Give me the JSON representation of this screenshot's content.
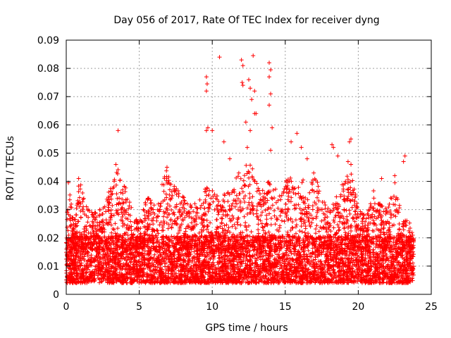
{
  "chart_data": {
    "type": "scatter",
    "title": "Day 056 of 2017, Rate Of TEC Index for receiver dyng",
    "xlabel": "GPS time / hours",
    "ylabel": "ROTI / TECUs",
    "xlim": [
      0,
      25
    ],
    "ylim": [
      0,
      0.09
    ],
    "x_ticks": [
      0,
      5,
      10,
      15,
      20,
      25
    ],
    "x_tick_labels": [
      "0",
      "5",
      "10",
      "15",
      "20",
      "25"
    ],
    "y_ticks": [
      0,
      0.01,
      0.02,
      0.03,
      0.04,
      0.05,
      0.06,
      0.07,
      0.08,
      0.09
    ],
    "y_tick_labels": [
      "0",
      "0.01",
      "0.02",
      "0.03",
      "0.04",
      "0.05",
      "0.06",
      "0.07",
      "0.08",
      "0.09"
    ],
    "grid": true,
    "marker": "+",
    "color": "#ff0000",
    "data_range_x": [
      0.0,
      23.8
    ],
    "baseline": {
      "typical_min": 0.004,
      "typical_max": 0.02,
      "median": 0.011
    },
    "envelope": [
      {
        "x": 0.0,
        "y": 0.03
      },
      {
        "x": 0.2,
        "y": 0.04
      },
      {
        "x": 0.5,
        "y": 0.025
      },
      {
        "x": 0.9,
        "y": 0.041
      },
      {
        "x": 1.5,
        "y": 0.03
      },
      {
        "x": 2.0,
        "y": 0.029
      },
      {
        "x": 2.5,
        "y": 0.031
      },
      {
        "x": 3.0,
        "y": 0.038
      },
      {
        "x": 3.6,
        "y": 0.045
      },
      {
        "x": 4.0,
        "y": 0.04
      },
      {
        "x": 4.5,
        "y": 0.03
      },
      {
        "x": 5.0,
        "y": 0.026
      },
      {
        "x": 5.6,
        "y": 0.036
      },
      {
        "x": 6.2,
        "y": 0.03
      },
      {
        "x": 6.8,
        "y": 0.045
      },
      {
        "x": 7.2,
        "y": 0.04
      },
      {
        "x": 7.6,
        "y": 0.037
      },
      {
        "x": 8.5,
        "y": 0.032
      },
      {
        "x": 9.0,
        "y": 0.034
      },
      {
        "x": 9.5,
        "y": 0.038
      },
      {
        "x": 10.0,
        "y": 0.037
      },
      {
        "x": 10.5,
        "y": 0.035
      },
      {
        "x": 11.0,
        "y": 0.036
      },
      {
        "x": 11.5,
        "y": 0.04
      },
      {
        "x": 12.0,
        "y": 0.045
      },
      {
        "x": 12.5,
        "y": 0.047
      },
      {
        "x": 13.0,
        "y": 0.042
      },
      {
        "x": 13.5,
        "y": 0.038
      },
      {
        "x": 14.0,
        "y": 0.045
      },
      {
        "x": 14.5,
        "y": 0.034
      },
      {
        "x": 15.0,
        "y": 0.041
      },
      {
        "x": 15.5,
        "y": 0.042
      },
      {
        "x": 16.0,
        "y": 0.044
      },
      {
        "x": 16.5,
        "y": 0.036
      },
      {
        "x": 17.0,
        "y": 0.044
      },
      {
        "x": 17.5,
        "y": 0.034
      },
      {
        "x": 18.0,
        "y": 0.03
      },
      {
        "x": 18.5,
        "y": 0.036
      },
      {
        "x": 19.0,
        "y": 0.04
      },
      {
        "x": 19.5,
        "y": 0.045
      },
      {
        "x": 20.0,
        "y": 0.03
      },
      {
        "x": 20.5,
        "y": 0.028
      },
      {
        "x": 21.0,
        "y": 0.038
      },
      {
        "x": 21.5,
        "y": 0.032
      },
      {
        "x": 22.0,
        "y": 0.03
      },
      {
        "x": 22.5,
        "y": 0.04
      },
      {
        "x": 23.0,
        "y": 0.027
      },
      {
        "x": 23.5,
        "y": 0.026
      },
      {
        "x": 23.8,
        "y": 0.02
      }
    ],
    "notable_points": [
      {
        "x": 0.15,
        "y": 0.0395
      },
      {
        "x": 0.85,
        "y": 0.041
      },
      {
        "x": 3.55,
        "y": 0.058
      },
      {
        "x": 3.4,
        "y": 0.046
      },
      {
        "x": 6.9,
        "y": 0.045
      },
      {
        "x": 9.6,
        "y": 0.077
      },
      {
        "x": 9.65,
        "y": 0.0745
      },
      {
        "x": 9.6,
        "y": 0.072
      },
      {
        "x": 9.7,
        "y": 0.059
      },
      {
        "x": 9.6,
        "y": 0.058
      },
      {
        "x": 10.5,
        "y": 0.084
      },
      {
        "x": 10.0,
        "y": 0.058
      },
      {
        "x": 10.8,
        "y": 0.054
      },
      {
        "x": 11.2,
        "y": 0.048
      },
      {
        "x": 12.0,
        "y": 0.083
      },
      {
        "x": 12.1,
        "y": 0.081
      },
      {
        "x": 12.05,
        "y": 0.075
      },
      {
        "x": 12.1,
        "y": 0.074
      },
      {
        "x": 12.5,
        "y": 0.076
      },
      {
        "x": 12.6,
        "y": 0.073
      },
      {
        "x": 12.7,
        "y": 0.069
      },
      {
        "x": 12.9,
        "y": 0.072
      },
      {
        "x": 12.9,
        "y": 0.064
      },
      {
        "x": 13.0,
        "y": 0.064
      },
      {
        "x": 12.6,
        "y": 0.058
      },
      {
        "x": 12.3,
        "y": 0.061
      },
      {
        "x": 12.4,
        "y": 0.052
      },
      {
        "x": 12.8,
        "y": 0.0845
      },
      {
        "x": 13.9,
        "y": 0.082
      },
      {
        "x": 14.0,
        "y": 0.0795
      },
      {
        "x": 13.9,
        "y": 0.077
      },
      {
        "x": 14.0,
        "y": 0.071
      },
      {
        "x": 13.9,
        "y": 0.067
      },
      {
        "x": 14.1,
        "y": 0.059
      },
      {
        "x": 14.0,
        "y": 0.051
      },
      {
        "x": 15.4,
        "y": 0.054
      },
      {
        "x": 15.8,
        "y": 0.057
      },
      {
        "x": 16.1,
        "y": 0.052
      },
      {
        "x": 16.5,
        "y": 0.048
      },
      {
        "x": 18.2,
        "y": 0.053
      },
      {
        "x": 18.3,
        "y": 0.052
      },
      {
        "x": 18.6,
        "y": 0.049
      },
      {
        "x": 19.4,
        "y": 0.054
      },
      {
        "x": 19.5,
        "y": 0.055
      },
      {
        "x": 19.3,
        "y": 0.047
      },
      {
        "x": 19.5,
        "y": 0.046
      },
      {
        "x": 21.6,
        "y": 0.041
      },
      {
        "x": 22.5,
        "y": 0.042
      },
      {
        "x": 23.2,
        "y": 0.049
      },
      {
        "x": 23.1,
        "y": 0.047
      }
    ]
  }
}
